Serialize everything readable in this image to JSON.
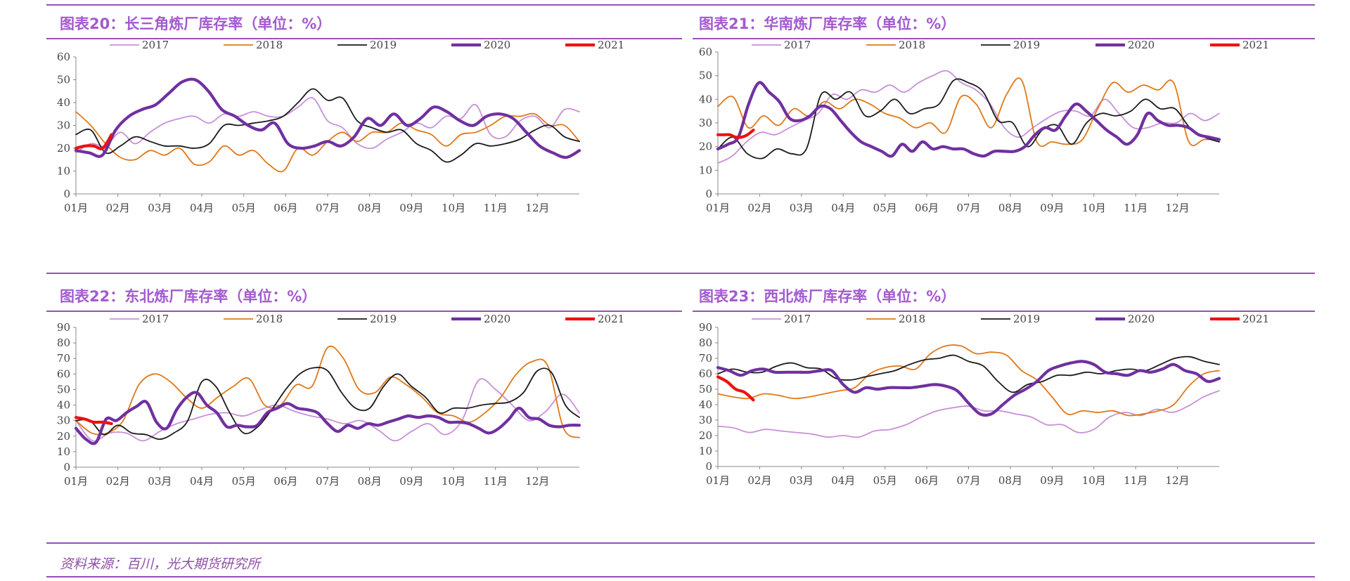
{
  "footer": {
    "source": "资料来源：百川，光大期货研究所"
  },
  "colors": {
    "2017": "#c890d8",
    "2018": "#e07818",
    "2019": "#1a1a1a",
    "2020": "#7030a0",
    "2021": "#ee1111",
    "accent": "#9b4fb5"
  },
  "chart_data": [
    {
      "type": "line",
      "title": "图表20：长三角炼厂库存率（单位：%）",
      "ylim": [
        0,
        60
      ],
      "yticks": [
        0,
        10,
        20,
        30,
        40,
        50,
        60
      ],
      "xlabels": [
        "01月",
        "02月",
        "03月",
        "04月",
        "05月",
        "06月",
        "07月",
        "08月",
        "09月",
        "10月",
        "11月",
        "12月"
      ],
      "legend_position": "top",
      "series": [
        {
          "name": "2017",
          "values": [
            18,
            22,
            21,
            27,
            22,
            27,
            31,
            33,
            34,
            31,
            35,
            34,
            36,
            34,
            34,
            38,
            42,
            32,
            29,
            22,
            20,
            24,
            27,
            31,
            29,
            34,
            33,
            39,
            26,
            25,
            32,
            34,
            29,
            37,
            36
          ]
        },
        {
          "name": "2018",
          "values": [
            36,
            30,
            22,
            16,
            15,
            19,
            17,
            20,
            13,
            14,
            21,
            17,
            19,
            13,
            10,
            20,
            17,
            23,
            27,
            23,
            27,
            27,
            31,
            28,
            26,
            21,
            26,
            27,
            30,
            34,
            34,
            35,
            30,
            30,
            23
          ]
        },
        {
          "name": "2019",
          "values": [
            26,
            28,
            18,
            21,
            25,
            23,
            21,
            21,
            20,
            22,
            30,
            30,
            31,
            32,
            34,
            40,
            46,
            41,
            42,
            32,
            29,
            27,
            28,
            22,
            19,
            14,
            17,
            22,
            21,
            22,
            24,
            28,
            30,
            25,
            23
          ]
        },
        {
          "name": "2020",
          "values": [
            19,
            18,
            17,
            28,
            34,
            37,
            39,
            44,
            49,
            50,
            45,
            37,
            34,
            30,
            28,
            31,
            22,
            20,
            21,
            23,
            21,
            25,
            33,
            30,
            35,
            30,
            33,
            38,
            36,
            32,
            30,
            34,
            35,
            33,
            27,
            21,
            18,
            16,
            19
          ]
        },
        {
          "name": "2021",
          "values": [
            20,
            21,
            21,
            20,
            26
          ]
        }
      ]
    },
    {
      "type": "line",
      "title": "图表21：华南炼厂库存率（单位：%）",
      "ylim": [
        0,
        60
      ],
      "yticks": [
        0,
        10,
        20,
        30,
        40,
        50,
        60
      ],
      "xlabels": [
        "01月",
        "02月",
        "03月",
        "04月",
        "05月",
        "06月",
        "07月",
        "08月",
        "09月",
        "10月",
        "11月",
        "12月"
      ],
      "legend_position": "top",
      "series": [
        {
          "name": "2017",
          "values": [
            13,
            16,
            22,
            26,
            25,
            28,
            31,
            34,
            42,
            40,
            44,
            43,
            46,
            43,
            47,
            50,
            52,
            47,
            44,
            38,
            28,
            24,
            28,
            32,
            35,
            35,
            33,
            40,
            34,
            28,
            28,
            30,
            30,
            34,
            31,
            34
          ]
        },
        {
          "name": "2018",
          "values": [
            37,
            41,
            28,
            33,
            29,
            36,
            33,
            39,
            36,
            40,
            38,
            34,
            32,
            28,
            30,
            26,
            41,
            38,
            28,
            42,
            48,
            22,
            22,
            21,
            23,
            36,
            47,
            43,
            46,
            44,
            47,
            22,
            23,
            23
          ]
        },
        {
          "name": "2019",
          "values": [
            19,
            24,
            17,
            15,
            19,
            17,
            19,
            42,
            40,
            43,
            33,
            35,
            40,
            34,
            36,
            38,
            48,
            47,
            43,
            31,
            30,
            20,
            27,
            29,
            21,
            30,
            34,
            33,
            35,
            40,
            36,
            36,
            28,
            24,
            22
          ]
        },
        {
          "name": "2020",
          "values": [
            19,
            21,
            24,
            38,
            47,
            43,
            39,
            32,
            31,
            33,
            37,
            36,
            31,
            26,
            22,
            20,
            18,
            16,
            21,
            18,
            22,
            19,
            20,
            19,
            19,
            17,
            16,
            18,
            18,
            18,
            20,
            25,
            28,
            27,
            33,
            38,
            35,
            31,
            27,
            24,
            21,
            25,
            34,
            31,
            29,
            29,
            28,
            25,
            24,
            23
          ]
        },
        {
          "name": "2021",
          "values": [
            25,
            25,
            25,
            24,
            24,
            25,
            27
          ]
        }
      ]
    },
    {
      "type": "line",
      "title": "图表22：东北炼厂库存率（单位：%）",
      "ylim": [
        0,
        90
      ],
      "yticks": [
        0,
        10,
        20,
        30,
        40,
        50,
        60,
        70,
        80,
        90
      ],
      "xlabels": [
        "01月",
        "02月",
        "03月",
        "04月",
        "05月",
        "06月",
        "07月",
        "08月",
        "09月",
        "10月",
        "11月",
        "12月"
      ],
      "legend_position": "top",
      "series": [
        {
          "name": "2017",
          "values": [
            30,
            17,
            22,
            22,
            17,
            23,
            28,
            31,
            34,
            35,
            33,
            37,
            40,
            36,
            33,
            31,
            28,
            30,
            24,
            17,
            23,
            28,
            21,
            30,
            56,
            50,
            40,
            30,
            36,
            47,
            35
          ]
        },
        {
          "name": "2018",
          "values": [
            30,
            22,
            22,
            30,
            53,
            60,
            55,
            45,
            38,
            45,
            52,
            57,
            40,
            40,
            53,
            52,
            77,
            70,
            50,
            48,
            58,
            53,
            45,
            35,
            33,
            29,
            35,
            45,
            60,
            68,
            65,
            25,
            19
          ]
        },
        {
          "name": "2019",
          "values": [
            30,
            30,
            21,
            27,
            22,
            21,
            18,
            22,
            30,
            55,
            52,
            35,
            22,
            26,
            37,
            50,
            60,
            64,
            62,
            48,
            38,
            38,
            52,
            60,
            52,
            45,
            35,
            38,
            38,
            40,
            41,
            42,
            48,
            62,
            61,
            40,
            32
          ]
        },
        {
          "name": "2020",
          "values": [
            25,
            18,
            16,
            31,
            30,
            35,
            39,
            42,
            29,
            25,
            37,
            45,
            48,
            40,
            35,
            26,
            27,
            26,
            27,
            35,
            38,
            41,
            38,
            37,
            35,
            28,
            23,
            27,
            25,
            28,
            27,
            29,
            31,
            33,
            32,
            33,
            32,
            29,
            29,
            28,
            25,
            22,
            25,
            31,
            38,
            32,
            31,
            27,
            26,
            27,
            27
          ]
        },
        {
          "name": "2021",
          "values": [
            32,
            31,
            29,
            29,
            28
          ]
        }
      ]
    },
    {
      "type": "line",
      "title": "图表23：西北炼厂库存率（单位：%）",
      "ylim": [
        0,
        90
      ],
      "yticks": [
        0,
        10,
        20,
        30,
        40,
        50,
        60,
        70,
        80,
        90
      ],
      "xlabels": [
        "01月",
        "02月",
        "03月",
        "04月",
        "05月",
        "06月",
        "07月",
        "08月",
        "09月",
        "10月",
        "11月",
        "12月"
      ],
      "legend_position": "top",
      "series": [
        {
          "name": "2017",
          "values": [
            26,
            25,
            22,
            24,
            23,
            22,
            21,
            19,
            20,
            19,
            23,
            24,
            27,
            32,
            36,
            38,
            39,
            36,
            36,
            34,
            32,
            27,
            27,
            22,
            24,
            32,
            35,
            33,
            37,
            35,
            39,
            45,
            49
          ]
        },
        {
          "name": "2018",
          "values": [
            47,
            45,
            44,
            47,
            46,
            44,
            45,
            47,
            49,
            51,
            60,
            64,
            65,
            63,
            73,
            78,
            78,
            73,
            74,
            72,
            62,
            56,
            45,
            34,
            36,
            35,
            36,
            33,
            34,
            36,
            40,
            52,
            60,
            62
          ]
        },
        {
          "name": "2019",
          "values": [
            60,
            63,
            61,
            61,
            65,
            67,
            64,
            63,
            57,
            56,
            58,
            60,
            62,
            66,
            69,
            70,
            72,
            68,
            65,
            55,
            48,
            53,
            55,
            59,
            59,
            61,
            60,
            62,
            63,
            62,
            66,
            70,
            71,
            68,
            66
          ]
        },
        {
          "name": "2020",
          "values": [
            64,
            62,
            59,
            62,
            63,
            61,
            61,
            61,
            61,
            62,
            62,
            53,
            48,
            51,
            50,
            51,
            51,
            51,
            52,
            53,
            52,
            49,
            41,
            34,
            34,
            40,
            46,
            50,
            55,
            62,
            65,
            67,
            68,
            66,
            61,
            60,
            59,
            62,
            61,
            63,
            66,
            62,
            60,
            55,
            57
          ]
        },
        {
          "name": "2021",
          "values": [
            58,
            55,
            50,
            48,
            43
          ]
        }
      ]
    }
  ]
}
